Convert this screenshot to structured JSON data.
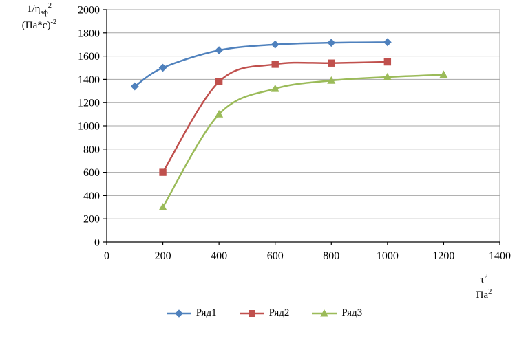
{
  "page": {
    "background": "#ffffff"
  },
  "chart_data": {
    "type": "line",
    "title": "",
    "ylabel": {
      "base": "1/η",
      "sub": "эф",
      "sup": "2",
      "units": "(Па*с)",
      "units_sup": "-2"
    },
    "xlabel": {
      "base": "τ",
      "sup": "2",
      "units": "Па",
      "units_sup": "2"
    },
    "xlim": [
      0,
      1400
    ],
    "ylim": [
      0,
      2000
    ],
    "xticks": [
      0,
      200,
      400,
      600,
      800,
      1000,
      1200,
      1400
    ],
    "yticks": [
      0,
      200,
      400,
      600,
      800,
      1000,
      1200,
      1400,
      1600,
      1800,
      2000
    ],
    "grid": "horizontal",
    "grid_color": "#a6a6a6",
    "axis_color": "#000000",
    "legend_position": "bottom",
    "series": [
      {
        "name": "Ряд1",
        "color": "#4F81BD",
        "marker": "diamond",
        "x": [
          100,
          200,
          400,
          600,
          800,
          1000
        ],
        "y": [
          1340,
          1500,
          1650,
          1700,
          1715,
          1720
        ]
      },
      {
        "name": "Ряд2",
        "color": "#C0504D",
        "marker": "square",
        "x": [
          200,
          400,
          600,
          800,
          1000
        ],
        "y": [
          600,
          1380,
          1530,
          1540,
          1550
        ]
      },
      {
        "name": "Ряд3",
        "color": "#9BBB59",
        "marker": "triangle",
        "x": [
          200,
          400,
          600,
          800,
          1000,
          1200
        ],
        "y": [
          300,
          1100,
          1320,
          1390,
          1420,
          1440
        ]
      }
    ]
  }
}
